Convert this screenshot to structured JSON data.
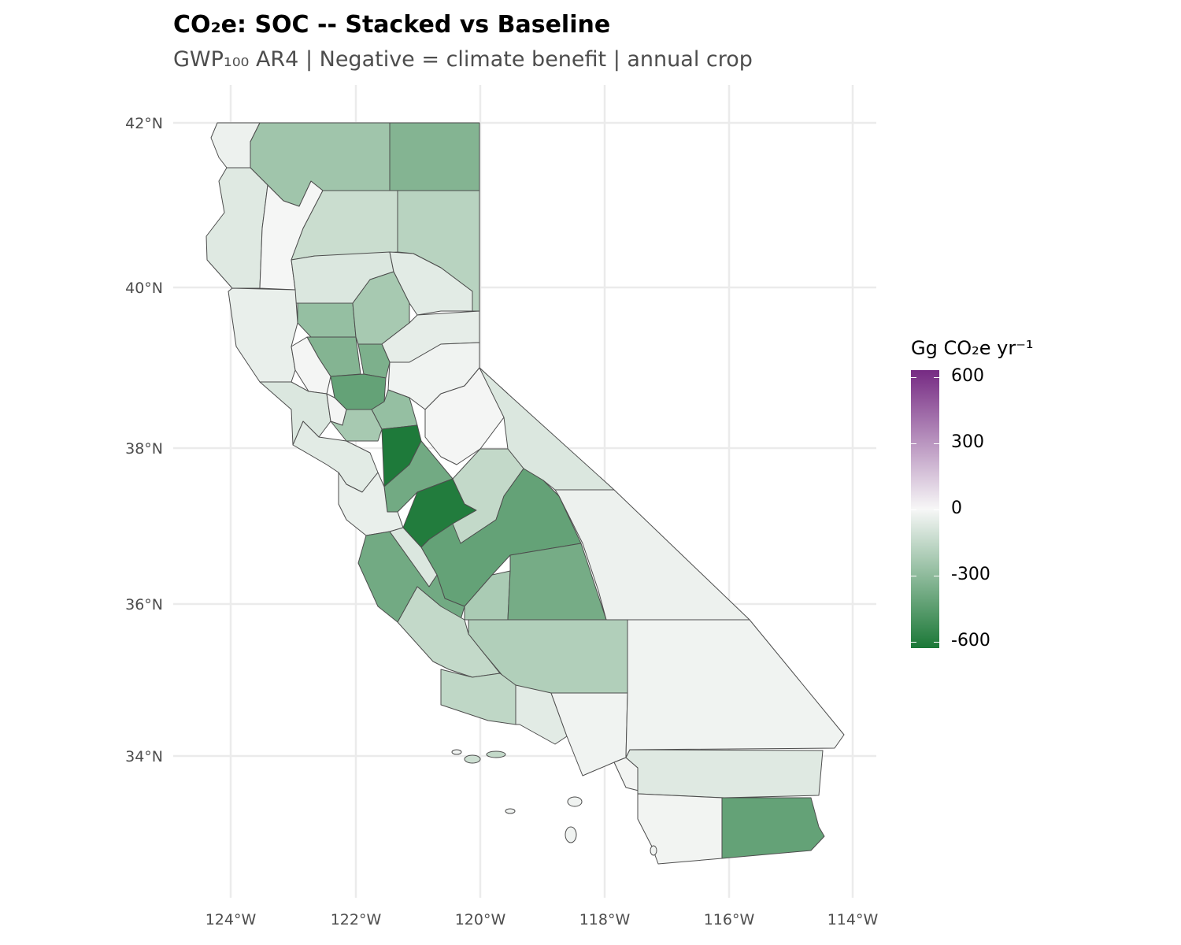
{
  "title": "CO₂e: SOC -- Stacked vs Baseline",
  "subtitle": "GWP₁₀₀ AR4 | Negative = climate benefit | annual crop",
  "axes": {
    "lat_labels": [
      "42°N",
      "40°N",
      "38°N",
      "36°N",
      "34°N"
    ],
    "lon_labels": [
      "124°W",
      "122°W",
      "120°W",
      "118°W",
      "116°W",
      "114°W"
    ]
  },
  "legend": {
    "title": "Gg CO₂e yr⁻¹",
    "labels": [
      "600",
      "300",
      "0",
      "-300",
      "-600"
    ],
    "limits": [
      -630,
      630
    ],
    "low_color": "#1b7837",
    "mid_color": "#f7f7f7",
    "high_color": "#762a83"
  },
  "map_data": {
    "type": "choropleth",
    "region_values": [
      -30,
      -250,
      -330,
      -70,
      -5,
      -130,
      -180,
      -80,
      -60,
      -40,
      -280,
      -230,
      -50,
      -330,
      -350,
      -10,
      -20,
      -420,
      -80,
      -10,
      -280,
      -230,
      -10,
      -60,
      -620,
      -80,
      -380,
      -610,
      -150,
      -40,
      -420,
      -30,
      -380,
      -80,
      -220,
      -370,
      -150,
      -200,
      -160,
      -60,
      -20,
      -20,
      -15,
      -70,
      -15,
      -420
    ]
  }
}
